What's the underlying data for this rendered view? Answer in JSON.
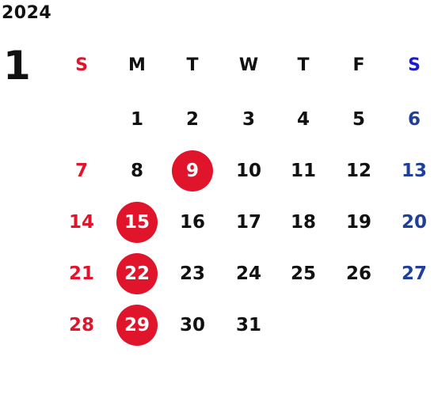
{
  "calendar": {
    "year": "2024",
    "month": "1",
    "weekday_headers": [
      "S",
      "M",
      "T",
      "W",
      "T",
      "F",
      "S"
    ],
    "weeks": [
      [
        "",
        "1",
        "2",
        "3",
        "4",
        "5",
        "6"
      ],
      [
        "7",
        "8",
        "9",
        "10",
        "11",
        "12",
        "13"
      ],
      [
        "14",
        "15",
        "16",
        "17",
        "18",
        "19",
        "20"
      ],
      [
        "21",
        "22",
        "23",
        "24",
        "25",
        "26",
        "27"
      ],
      [
        "28",
        "29",
        "30",
        "31",
        "",
        "",
        ""
      ]
    ],
    "highlighted_days": [
      "9",
      "15",
      "22",
      "29"
    ]
  },
  "colors": {
    "text": "#111111",
    "sunday": "#e0142b",
    "saturday_header": "#1a1ad6",
    "saturday_dates": "#1f3f99",
    "highlight_circle": "#e0142b",
    "highlight_text": "#ffffff"
  }
}
